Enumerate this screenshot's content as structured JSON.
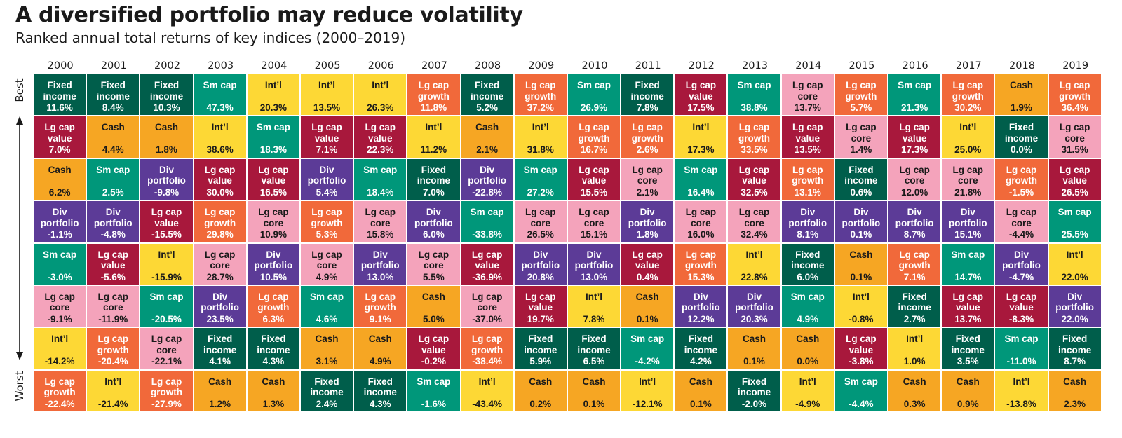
{
  "title": "A diversified portfolio may reduce volatility",
  "subtitle": "Ranked annual total returns of key indices (2000–2019)",
  "axis": {
    "best": "Best",
    "worst": "Worst"
  },
  "colors": {
    "Fixed income": "#005e4b",
    "Sm cap": "#00977a",
    "Lg cap value": "#a8183c",
    "Lg cap growth": "#f1693a",
    "Lg cap core": "#f4a3bb",
    "Int'l": "#fdd835",
    "Cash": "#f6a623",
    "Div portfolio": "#5c3b97"
  },
  "light_text_categories": [
    "Lg cap core",
    "Int'l",
    "Cash"
  ],
  "chart_data": {
    "type": "table",
    "title": "A diversified portfolio may reduce volatility",
    "subtitle": "Ranked annual total returns of key indices (2000–2019)",
    "years": [
      "2000",
      "2001",
      "2002",
      "2003",
      "2004",
      "2005",
      "2006",
      "2007",
      "2008",
      "2009",
      "2010",
      "2011",
      "2012",
      "2013",
      "2014",
      "2015",
      "2016",
      "2017",
      "2018",
      "2019"
    ],
    "row_labels": {
      "top": "Best",
      "bottom": "Worst"
    },
    "columns": [
      [
        [
          "Fixed income",
          "11.6%"
        ],
        [
          "Lg cap value",
          "7.0%"
        ],
        [
          "Cash",
          "6.2%"
        ],
        [
          "Div portfolio",
          "-1.1%"
        ],
        [
          "Sm cap",
          "-3.0%"
        ],
        [
          "Lg cap core",
          "-9.1%"
        ],
        [
          "Int'l",
          "-14.2%"
        ],
        [
          "Lg cap growth",
          "-22.4%"
        ]
      ],
      [
        [
          "Fixed income",
          "8.4%"
        ],
        [
          "Cash",
          "4.4%"
        ],
        [
          "Sm cap",
          "2.5%"
        ],
        [
          "Div portfolio",
          "-4.8%"
        ],
        [
          "Lg cap value",
          "-5.6%"
        ],
        [
          "Lg cap core",
          "-11.9%"
        ],
        [
          "Lg cap growth",
          "-20.4%"
        ],
        [
          "Int'l",
          "-21.4%"
        ]
      ],
      [
        [
          "Fixed income",
          "10.3%"
        ],
        [
          "Cash",
          "1.8%"
        ],
        [
          "Div portfolio",
          "-9.8%"
        ],
        [
          "Lg cap value",
          "-15.5%"
        ],
        [
          "Int'l",
          "-15.9%"
        ],
        [
          "Sm cap",
          "-20.5%"
        ],
        [
          "Lg cap core",
          "-22.1%"
        ],
        [
          "Lg cap growth",
          "-27.9%"
        ]
      ],
      [
        [
          "Sm cap",
          "47.3%"
        ],
        [
          "Int'l",
          "38.6%"
        ],
        [
          "Lg cap value",
          "30.0%"
        ],
        [
          "Lg cap growth",
          "29.8%"
        ],
        [
          "Lg cap core",
          "28.7%"
        ],
        [
          "Div portfolio",
          "23.5%"
        ],
        [
          "Fixed income",
          "4.1%"
        ],
        [
          "Cash",
          "1.2%"
        ]
      ],
      [
        [
          "Int'l",
          "20.3%"
        ],
        [
          "Sm cap",
          "18.3%"
        ],
        [
          "Lg cap value",
          "16.5%"
        ],
        [
          "Lg cap core",
          "10.9%"
        ],
        [
          "Div portfolio",
          "10.5%"
        ],
        [
          "Lg cap growth",
          "6.3%"
        ],
        [
          "Fixed income",
          "4.3%"
        ],
        [
          "Cash",
          "1.3%"
        ]
      ],
      [
        [
          "Int'l",
          "13.5%"
        ],
        [
          "Lg cap value",
          "7.1%"
        ],
        [
          "Div portfolio",
          "5.4%"
        ],
        [
          "Lg cap growth",
          "5.3%"
        ],
        [
          "Lg cap core",
          "4.9%"
        ],
        [
          "Sm cap",
          "4.6%"
        ],
        [
          "Cash",
          "3.1%"
        ],
        [
          "Fixed income",
          "2.4%"
        ]
      ],
      [
        [
          "Int'l",
          "26.3%"
        ],
        [
          "Lg cap value",
          "22.3%"
        ],
        [
          "Sm cap",
          "18.4%"
        ],
        [
          "Lg cap core",
          "15.8%"
        ],
        [
          "Div portfolio",
          "13.0%"
        ],
        [
          "Lg cap growth",
          "9.1%"
        ],
        [
          "Cash",
          "4.9%"
        ],
        [
          "Fixed income",
          "4.3%"
        ]
      ],
      [
        [
          "Lg cap growth",
          "11.8%"
        ],
        [
          "Int'l",
          "11.2%"
        ],
        [
          "Fixed income",
          "7.0%"
        ],
        [
          "Div portfolio",
          "6.0%"
        ],
        [
          "Lg cap core",
          "5.5%"
        ],
        [
          "Cash",
          "5.0%"
        ],
        [
          "Lg cap value",
          "-0.2%"
        ],
        [
          "Sm cap",
          "-1.6%"
        ]
      ],
      [
        [
          "Fixed income",
          "5.2%"
        ],
        [
          "Cash",
          "2.1%"
        ],
        [
          "Div portfolio",
          "-22.8%"
        ],
        [
          "Sm cap",
          "-33.8%"
        ],
        [
          "Lg cap value",
          "-36.9%"
        ],
        [
          "Lg cap core",
          "-37.0%"
        ],
        [
          "Lg cap growth",
          "-38.4%"
        ],
        [
          "Int'l",
          "-43.4%"
        ]
      ],
      [
        [
          "Lg cap growth",
          "37.2%"
        ],
        [
          "Int'l",
          "31.8%"
        ],
        [
          "Sm cap",
          "27.2%"
        ],
        [
          "Lg cap core",
          "26.5%"
        ],
        [
          "Div portfolio",
          "20.8%"
        ],
        [
          "Lg cap value",
          "19.7%"
        ],
        [
          "Fixed income",
          "5.9%"
        ],
        [
          "Cash",
          "0.2%"
        ]
      ],
      [
        [
          "Sm cap",
          "26.9%"
        ],
        [
          "Lg cap growth",
          "16.7%"
        ],
        [
          "Lg cap value",
          "15.5%"
        ],
        [
          "Lg cap core",
          "15.1%"
        ],
        [
          "Div portfolio",
          "13.0%"
        ],
        [
          "Int'l",
          "7.8%"
        ],
        [
          "Fixed income",
          "6.5%"
        ],
        [
          "Cash",
          "0.1%"
        ]
      ],
      [
        [
          "Fixed income",
          "7.8%"
        ],
        [
          "Lg cap growth",
          "2.6%"
        ],
        [
          "Lg cap core",
          "2.1%"
        ],
        [
          "Div portfolio",
          "1.8%"
        ],
        [
          "Lg cap value",
          "0.4%"
        ],
        [
          "Cash",
          "0.1%"
        ],
        [
          "Sm cap",
          "-4.2%"
        ],
        [
          "Int'l",
          "-12.1%"
        ]
      ],
      [
        [
          "Lg cap value",
          "17.5%"
        ],
        [
          "Int'l",
          "17.3%"
        ],
        [
          "Sm cap",
          "16.4%"
        ],
        [
          "Lg cap core",
          "16.0%"
        ],
        [
          "Lg cap growth",
          "15.3%"
        ],
        [
          "Div portfolio",
          "12.2%"
        ],
        [
          "Fixed income",
          "4.2%"
        ],
        [
          "Cash",
          "0.1%"
        ]
      ],
      [
        [
          "Sm cap",
          "38.8%"
        ],
        [
          "Lg cap growth",
          "33.5%"
        ],
        [
          "Lg cap value",
          "32.5%"
        ],
        [
          "Lg cap core",
          "32.4%"
        ],
        [
          "Int'l",
          "22.8%"
        ],
        [
          "Div portfolio",
          "20.3%"
        ],
        [
          "Cash",
          "0.1%"
        ],
        [
          "Fixed income",
          "-2.0%"
        ]
      ],
      [
        [
          "Lg cap core",
          "13.7%"
        ],
        [
          "Lg cap value",
          "13.5%"
        ],
        [
          "Lg cap growth",
          "13.1%"
        ],
        [
          "Div portfolio",
          "8.1%"
        ],
        [
          "Fixed income",
          "6.0%"
        ],
        [
          "Sm cap",
          "4.9%"
        ],
        [
          "Cash",
          "0.0%"
        ],
        [
          "Int'l",
          "-4.9%"
        ]
      ],
      [
        [
          "Lg cap growth",
          "5.7%"
        ],
        [
          "Lg cap core",
          "1.4%"
        ],
        [
          "Fixed income",
          "0.6%"
        ],
        [
          "Div portfolio",
          "0.1%"
        ],
        [
          "Cash",
          "0.1%"
        ],
        [
          "Int'l",
          "-0.8%"
        ],
        [
          "Lg cap value",
          "-3.8%"
        ],
        [
          "Sm cap",
          "-4.4%"
        ]
      ],
      [
        [
          "Sm cap",
          "21.3%"
        ],
        [
          "Lg cap value",
          "17.3%"
        ],
        [
          "Lg cap core",
          "12.0%"
        ],
        [
          "Div portfolio",
          "8.7%"
        ],
        [
          "Lg cap growth",
          "7.1%"
        ],
        [
          "Fixed income",
          "2.7%"
        ],
        [
          "Int'l",
          "1.0%"
        ],
        [
          "Cash",
          "0.3%"
        ]
      ],
      [
        [
          "Lg cap growth",
          "30.2%"
        ],
        [
          "Int'l",
          "25.0%"
        ],
        [
          "Lg cap core",
          "21.8%"
        ],
        [
          "Div portfolio",
          "15.1%"
        ],
        [
          "Sm cap",
          "14.7%"
        ],
        [
          "Lg cap value",
          "13.7%"
        ],
        [
          "Fixed income",
          "3.5%"
        ],
        [
          "Cash",
          "0.9%"
        ]
      ],
      [
        [
          "Cash",
          "1.9%"
        ],
        [
          "Fixed income",
          "0.0%"
        ],
        [
          "Lg cap growth",
          "-1.5%"
        ],
        [
          "Lg cap core",
          "-4.4%"
        ],
        [
          "Div portfolio",
          "-4.7%"
        ],
        [
          "Lg cap value",
          "-8.3%"
        ],
        [
          "Sm cap",
          "-11.0%"
        ],
        [
          "Int'l",
          "-13.8%"
        ]
      ],
      [
        [
          "Lg cap growth",
          "36.4%"
        ],
        [
          "Lg cap core",
          "31.5%"
        ],
        [
          "Lg cap value",
          "26.5%"
        ],
        [
          "Sm cap",
          "25.5%"
        ],
        [
          "Int'l",
          "22.0%"
        ],
        [
          "Div portfolio",
          "22.0%"
        ],
        [
          "Fixed income",
          "8.7%"
        ],
        [
          "Cash",
          "2.3%"
        ]
      ]
    ]
  }
}
